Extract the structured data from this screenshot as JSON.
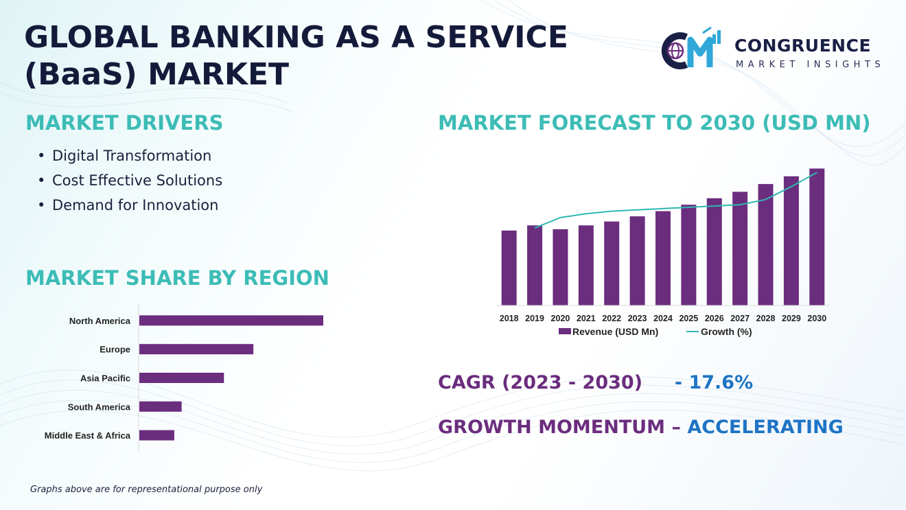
{
  "title": "GLOBAL BANKING AS A SERVICE (BaaS) MARKET",
  "logo": {
    "name": "CONGRUENCE",
    "subtitle": "MARKET INSIGHTS",
    "mark_letters": "CM"
  },
  "colors": {
    "teal": "#3dbcb6",
    "purple": "#6b2d7e",
    "blue": "#1e74c4",
    "navy": "#141b3a",
    "bar": "#6b2d7e",
    "line": "#2fb9b3"
  },
  "drivers": {
    "heading": "MARKET DRIVERS",
    "items": [
      "Digital Transformation",
      "Cost Effective Solutions",
      "Demand for Innovation"
    ]
  },
  "region": {
    "heading": "MARKET SHARE BY REGION"
  },
  "forecast": {
    "heading": "MARKET FORECAST TO 2030 (USD MN)"
  },
  "stats": {
    "cagr_label": "CAGR (2023 - 2030)",
    "cagr_value": "- 17.6%",
    "momentum_label": "GROWTH MOMENTUM –",
    "momentum_value": "ACCELERATING"
  },
  "footnote": "Graphs above are for representational purpose only",
  "chart_data": [
    {
      "type": "bar",
      "orientation": "horizontal",
      "categories": [
        "North America",
        "Europe",
        "Asia Pacific",
        "South America",
        "Middle East & Africa"
      ],
      "values": [
        100,
        62,
        46,
        23,
        19
      ],
      "xlim": [
        0,
        100
      ],
      "grid": false
    },
    {
      "type": "bar",
      "categories": [
        "2018",
        "2019",
        "2020",
        "2021",
        "2022",
        "2023",
        "2024",
        "2025",
        "2026",
        "2027",
        "2028",
        "2029",
        "2030"
      ],
      "series": [
        {
          "name": "Revenue (USD Mn)",
          "type": "bar",
          "values": [
            58,
            62,
            59,
            62,
            65,
            69,
            73,
            78,
            83,
            88,
            94,
            100,
            106
          ]
        },
        {
          "name": "Growth (%)",
          "type": "line",
          "values": [
            null,
            60,
            68,
            71,
            73,
            74,
            75,
            76,
            77,
            78,
            82,
            92,
            103
          ]
        }
      ],
      "ylim": [
        0,
        110
      ],
      "legend": "bottom",
      "grid": false
    }
  ]
}
